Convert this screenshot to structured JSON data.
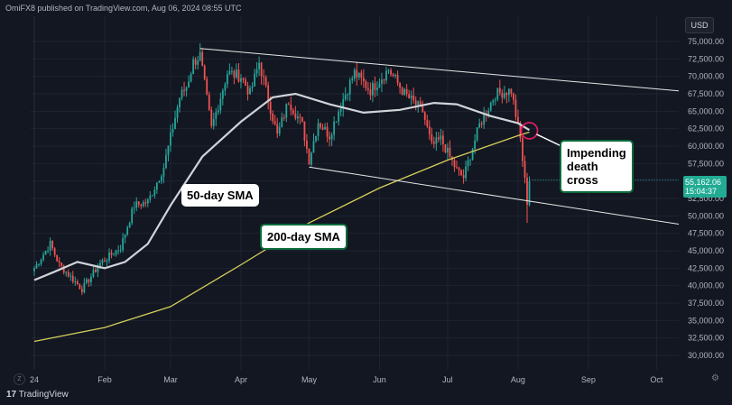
{
  "header": {
    "text": "OmiFX8 published on TradingView.com, Aug 06, 2024 08:55 UTC"
  },
  "currency": "USD",
  "price_tag": {
    "price": "55,162.06",
    "countdown": "15:04:37"
  },
  "footer": {
    "brand": "TradingView"
  },
  "icons": {
    "logo": "tradingview-logo-icon",
    "z": "z-button-icon",
    "gear": "gear-icon"
  },
  "colors": {
    "background": "#131722",
    "up": "#26a69a",
    "down": "#ef5350",
    "sma50": "#d0d3d8",
    "sma200": "#d6cf5a",
    "channel": "#e6e6e6",
    "marker": "#e91e63"
  },
  "chart_data": {
    "type": "candlestick",
    "x_ticks": [
      "24",
      "Feb",
      "Mar",
      "Apr",
      "May",
      "Jun",
      "Jul",
      "Aug",
      "Sep",
      "Oct"
    ],
    "y_ticks": [
      "75,000.00",
      "72,500.00",
      "70,000.00",
      "67,500.00",
      "65,000.00",
      "62,500.00",
      "60,000.00",
      "57,500.00",
      "55,000.00",
      "52,500.00",
      "50,000.00",
      "47,500.00",
      "45,000.00",
      "42,500.00",
      "40,000.00",
      "37,500.00",
      "35,000.00",
      "32,500.00",
      "30,000.00"
    ],
    "ylim": [
      28000,
      77000
    ],
    "annotations": [
      {
        "id": "sma50",
        "text": "50-day SMA"
      },
      {
        "id": "sma200",
        "text": "200-day SMA"
      },
      {
        "id": "death_cross",
        "text": "Impending death cross"
      }
    ],
    "anchors": [
      [
        "2024-01-01",
        42500
      ],
      [
        "2024-01-08",
        46000
      ],
      [
        "2024-01-12",
        43000
      ],
      [
        "2024-01-22",
        39500
      ],
      [
        "2024-01-30",
        43200
      ],
      [
        "2024-02-08",
        45500
      ],
      [
        "2024-02-14",
        51500
      ],
      [
        "2024-02-20",
        52000
      ],
      [
        "2024-02-27",
        57000
      ],
      [
        "2024-03-05",
        67000
      ],
      [
        "2024-03-08",
        68500
      ],
      [
        "2024-03-11",
        72000
      ],
      [
        "2024-03-14",
        73000
      ],
      [
        "2024-03-19",
        62500
      ],
      [
        "2024-03-26",
        70500
      ],
      [
        "2024-04-01",
        70000
      ],
      [
        "2024-04-05",
        67500
      ],
      [
        "2024-04-09",
        72000
      ],
      [
        "2024-04-17",
        61500
      ],
      [
        "2024-04-22",
        66500
      ],
      [
        "2024-04-28",
        63000
      ],
      [
        "2024-05-01",
        58000
      ],
      [
        "2024-05-05",
        63500
      ],
      [
        "2024-05-10",
        61500
      ],
      [
        "2024-05-15",
        66000
      ],
      [
        "2024-05-21",
        70500
      ],
      [
        "2024-05-28",
        68000
      ],
      [
        "2024-06-05",
        71000
      ],
      [
        "2024-06-12",
        67500
      ],
      [
        "2024-06-20",
        65000
      ],
      [
        "2024-06-24",
        60000
      ],
      [
        "2024-06-28",
        61000
      ],
      [
        "2024-07-05",
        56500
      ],
      [
        "2024-07-08",
        55500
      ],
      [
        "2024-07-15",
        63000
      ],
      [
        "2024-07-22",
        67500
      ],
      [
        "2024-07-29",
        68000
      ],
      [
        "2024-08-02",
        61000
      ],
      [
        "2024-08-05",
        52000
      ],
      [
        "2024-08-06",
        55162
      ]
    ],
    "sma50": [
      [
        "2024-01-01",
        40800
      ],
      [
        "2024-01-10",
        42000
      ],
      [
        "2024-01-20",
        43400
      ],
      [
        "2024-02-01",
        42500
      ],
      [
        "2024-02-10",
        43400
      ],
      [
        "2024-02-20",
        46000
      ],
      [
        "2024-03-01",
        51500
      ],
      [
        "2024-03-15",
        58500
      ],
      [
        "2024-04-01",
        63500
      ],
      [
        "2024-04-15",
        67000
      ],
      [
        "2024-04-25",
        67500
      ],
      [
        "2024-05-10",
        66000
      ],
      [
        "2024-05-25",
        64800
      ],
      [
        "2024-06-10",
        65200
      ],
      [
        "2024-06-25",
        66200
      ],
      [
        "2024-07-05",
        66000
      ],
      [
        "2024-07-20",
        64300
      ],
      [
        "2024-08-01",
        63300
      ],
      [
        "2024-08-06",
        62300
      ]
    ],
    "sma200": [
      [
        "2024-01-01",
        32000
      ],
      [
        "2024-02-01",
        34000
      ],
      [
        "2024-03-01",
        37000
      ],
      [
        "2024-04-01",
        43000
      ],
      [
        "2024-05-01",
        49000
      ],
      [
        "2024-06-01",
        54000
      ],
      [
        "2024-07-01",
        58000
      ],
      [
        "2024-08-01",
        61500
      ],
      [
        "2024-08-06",
        62000
      ]
    ],
    "channel_upper": [
      [
        "2024-03-14",
        74000
      ],
      [
        "2024-10-01",
        68200
      ]
    ],
    "channel_lower": [
      [
        "2024-05-01",
        57000
      ],
      [
        "2024-10-01",
        49300
      ]
    ]
  }
}
